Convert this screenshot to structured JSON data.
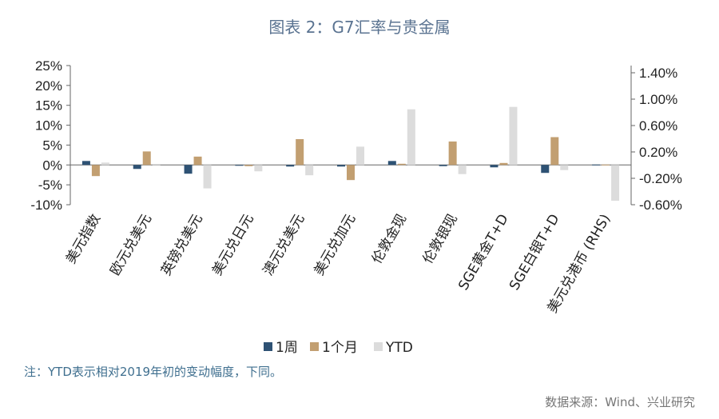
{
  "title": "图表 2：G7汇率与贵金属",
  "note": "注：YTD表示相对2019年初的变动幅度，下同。",
  "source": "数据来源：Wind、兴业研究",
  "colors": {
    "week": "#2e5274",
    "month": "#c29f71",
    "ytd": "#dcdcdc"
  },
  "chart_data": {
    "type": "bar",
    "categories": [
      "美元指数",
      "欧元兑美元",
      "英镑兑美元",
      "美元兑日元",
      "澳元兑美元",
      "美元兑加元",
      "伦敦金现",
      "伦敦银现",
      "SGE黄金T+D",
      "SGE白银T+D",
      "美元兑港币 (RHS)"
    ],
    "series": [
      {
        "name": "1周",
        "values": [
          1.0,
          -1.0,
          -2.2,
          -0.2,
          -0.4,
          -0.4,
          1.0,
          -0.3,
          -0.6,
          -2.0,
          null
        ]
      },
      {
        "name": "1个月",
        "values": [
          -2.8,
          3.4,
          2.1,
          -0.3,
          6.5,
          -3.8,
          0.3,
          5.9,
          0.5,
          7.0,
          null
        ]
      },
      {
        "name": "YTD",
        "values": [
          0.6,
          0,
          -5.9,
          -1.6,
          -2.6,
          4.6,
          14.0,
          -2.3,
          14.6,
          -1.3,
          null
        ]
      }
    ],
    "rhs_series": {
      "name": "YTD",
      "values": [
        -0.54
      ]
    },
    "ylim": [
      -10,
      25
    ],
    "y_ticks": [
      "25%",
      "20%",
      "15%",
      "10%",
      "5%",
      "0%",
      "-5%",
      "-10%"
    ],
    "y2lim": [
      -0.6,
      1.4
    ],
    "y2_ticks": [
      "1.40%",
      "1.00%",
      "0.60%",
      "0.20%",
      "-0.20%",
      "-0.60%"
    ],
    "legend": [
      "1周",
      "1个月",
      "YTD"
    ]
  }
}
